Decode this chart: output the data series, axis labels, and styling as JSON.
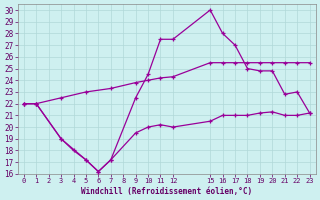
{
  "xlabel": "Windchill (Refroidissement éolien,°C)",
  "background_color": "#cef0f0",
  "grid_color": "#b0d8d8",
  "line_color": "#990099",
  "xlim": [
    -0.5,
    23.5
  ],
  "ylim": [
    16,
    30.5
  ],
  "xtick_positions": [
    0,
    1,
    2,
    3,
    4,
    5,
    6,
    7,
    8,
    9,
    10,
    11,
    12,
    15,
    16,
    17,
    18,
    19,
    20,
    21,
    22,
    23
  ],
  "xtick_labels": [
    "0",
    "1",
    "2",
    "3",
    "4",
    "5",
    "6",
    "7",
    "8",
    "9",
    "10",
    "11",
    "12",
    "15",
    "16",
    "17",
    "18",
    "19",
    "20",
    "21",
    "22",
    "23"
  ],
  "ytick_positions": [
    16,
    17,
    18,
    19,
    20,
    21,
    22,
    23,
    24,
    25,
    26,
    27,
    28,
    29,
    30
  ],
  "ytick_labels": [
    "16",
    "17",
    "18",
    "19",
    "20",
    "21",
    "22",
    "23",
    "24",
    "25",
    "26",
    "27",
    "28",
    "29",
    "30"
  ],
  "line1_x": [
    0,
    1,
    3,
    4,
    5,
    6,
    7,
    9,
    10,
    11,
    12,
    15,
    16,
    17,
    18,
    19,
    20,
    21,
    22,
    23
  ],
  "line1_y": [
    22,
    22,
    19,
    18,
    17.2,
    16.2,
    17.2,
    19.5,
    20.0,
    20.2,
    20.0,
    20.5,
    21.0,
    21.0,
    21.0,
    21.2,
    21.3,
    21.0,
    21.0,
    21.2
  ],
  "line2_x": [
    0,
    1,
    3,
    5,
    7,
    9,
    10,
    11,
    12,
    15,
    16,
    17,
    18,
    19,
    20,
    21,
    22,
    23
  ],
  "line2_y": [
    22,
    22,
    22.5,
    23.0,
    23.3,
    23.8,
    24.0,
    24.2,
    24.3,
    25.5,
    25.5,
    25.5,
    25.5,
    25.5,
    25.5,
    25.5,
    25.5,
    25.5
  ],
  "line3_x": [
    0,
    1,
    3,
    5,
    6,
    7,
    9,
    10,
    11,
    12,
    15,
    16,
    17,
    18,
    19,
    20,
    21,
    22,
    23
  ],
  "line3_y": [
    22,
    22,
    19.0,
    17.2,
    16.2,
    17.2,
    22.5,
    24.5,
    27.5,
    27.5,
    30.0,
    28.0,
    27.0,
    25.0,
    24.8,
    24.8,
    22.8,
    23.0,
    21.2
  ]
}
